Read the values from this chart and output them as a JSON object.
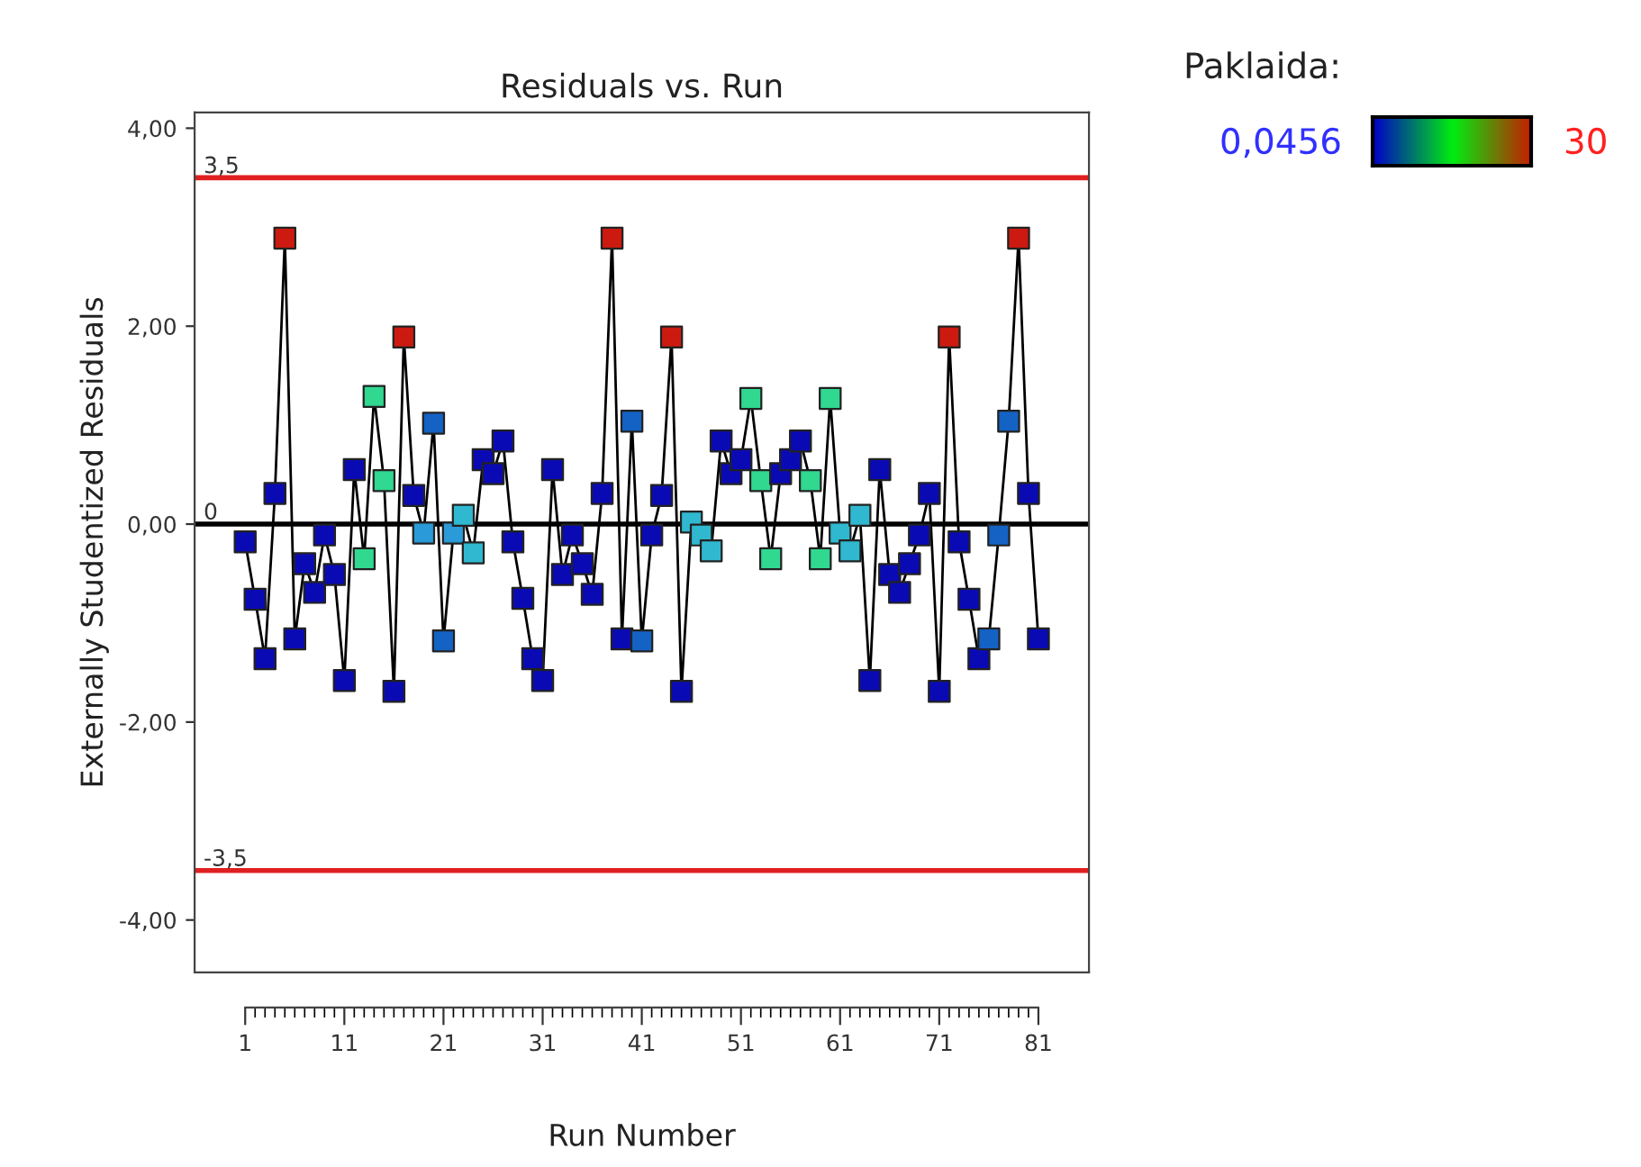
{
  "chart_data": {
    "type": "line",
    "title": "Residuals vs. Run",
    "xlabel": "Run Number",
    "ylabel": "Externally Studentized Residuals",
    "x": [
      1,
      2,
      3,
      4,
      5,
      6,
      7,
      8,
      9,
      10,
      11,
      12,
      13,
      14,
      15,
      16,
      17,
      18,
      19,
      20,
      21,
      22,
      23,
      24,
      25,
      26,
      27,
      28,
      29,
      30,
      31,
      32,
      33,
      34,
      35,
      36,
      37,
      38,
      39,
      40,
      41,
      42,
      43,
      44,
      45,
      46,
      47,
      48,
      49,
      50,
      51,
      52,
      53,
      54,
      55,
      56,
      57,
      58,
      59,
      60,
      61,
      62,
      63,
      64,
      65,
      66,
      67,
      68,
      69,
      70,
      71,
      72,
      73,
      74,
      75,
      76,
      77,
      78,
      79,
      80,
      81
    ],
    "series": [
      {
        "color": "#000000",
        "marker": "square",
        "values": [
          -0.18,
          -0.76,
          -1.36,
          0.31,
          2.89,
          -1.16,
          -0.4,
          -0.69,
          -0.11,
          -0.51,
          -1.58,
          0.55,
          -0.35,
          1.29,
          0.44,
          -1.69,
          1.89,
          0.29,
          -0.09,
          1.02,
          -1.18,
          -0.09,
          0.09,
          -0.29,
          0.65,
          0.51,
          0.84,
          -0.18,
          -0.75,
          -1.36,
          -1.58,
          0.55,
          -0.51,
          -0.11,
          -0.4,
          -0.71,
          0.31,
          2.89,
          -1.16,
          1.04,
          -1.18,
          -0.11,
          0.29,
          1.89,
          -1.69,
          0.02,
          -0.11,
          -0.27,
          0.84,
          0.51,
          0.65,
          1.27,
          0.44,
          -0.35,
          0.51,
          0.65,
          0.84,
          0.44,
          -0.35,
          1.27,
          -0.09,
          -0.27,
          0.09,
          -1.58,
          0.55,
          -0.51,
          -0.69,
          -0.4,
          -0.11,
          0.31,
          -1.69,
          1.89,
          -0.18,
          -0.76,
          -1.36,
          -1.16,
          -0.11,
          1.04,
          2.89,
          0.31,
          -1.16
        ],
        "colors": [
          "#0a0ab4",
          "#0a0ab4",
          "#0a0ab4",
          "#0a0ab4",
          "#cc1a10",
          "#0a0ab4",
          "#0a0ab4",
          "#0a0ab4",
          "#0a0ab4",
          "#0a0ab4",
          "#0a0ab4",
          "#0a0ab4",
          "#30d890",
          "#30d890",
          "#30d890",
          "#0a0ab4",
          "#cc1a10",
          "#0a0ab4",
          "#2a9ad8",
          "#1462c4",
          "#1462c4",
          "#2a9ad8",
          "#30b8d0",
          "#30b8d0",
          "#0a0ab4",
          "#0a0ab4",
          "#0a0ab4",
          "#0a0ab4",
          "#0a0ab4",
          "#0a0ab4",
          "#0a0ab4",
          "#0a0ab4",
          "#0a0ab4",
          "#0a0ab4",
          "#0a0ab4",
          "#0a0ab4",
          "#0a0ab4",
          "#cc1a10",
          "#0a0ab4",
          "#1462c4",
          "#1462c4",
          "#0a0ab4",
          "#0a0ab4",
          "#cc1a10",
          "#0a0ab4",
          "#30b8d0",
          "#30b8d0",
          "#30b8d0",
          "#0a0ab4",
          "#0a0ab4",
          "#0a0ab4",
          "#30d890",
          "#30d890",
          "#30d890",
          "#0a0ab4",
          "#0a0ab4",
          "#0a0ab4",
          "#30d890",
          "#30d890",
          "#30d890",
          "#30b8d0",
          "#30b8d0",
          "#30b8d0",
          "#0a0ab4",
          "#0a0ab4",
          "#0a0ab4",
          "#0a0ab4",
          "#0a0ab4",
          "#0a0ab4",
          "#0a0ab4",
          "#0a0ab4",
          "#cc1a10",
          "#0a0ab4",
          "#0a0ab4",
          "#0a0ab4",
          "#1462c4",
          "#1462c4",
          "#1462c4",
          "#cc1a10",
          "#0a0ab4",
          "#0a0ab4"
        ]
      }
    ],
    "annotations": [
      "Paklaida:",
      "0,0456",
      "30"
    ],
    "xlim": [
      -4.1,
      86.1
    ],
    "xticks": [
      1,
      11,
      21,
      31,
      41,
      51,
      61,
      71,
      81
    ],
    "ylim": [
      -4.53,
      4.16
    ],
    "yticks": [
      {
        "value": -4,
        "label": "-4,00"
      },
      {
        "value": -2,
        "label": "-2,00"
      },
      {
        "value": 0,
        "label": "0,00"
      },
      {
        "value": 2,
        "label": "2,00"
      },
      {
        "value": 4,
        "label": "4,00"
      }
    ],
    "ref_lines": [
      {
        "axis": "y",
        "value": 3.5,
        "label": "3,5",
        "color": "#e02020"
      },
      {
        "axis": "y",
        "value": 0,
        "label": "0",
        "color": "#000000"
      },
      {
        "axis": "y",
        "value": -3.5,
        "label": "-3,5",
        "color": "#e02020"
      }
    ],
    "grid": false
  }
}
